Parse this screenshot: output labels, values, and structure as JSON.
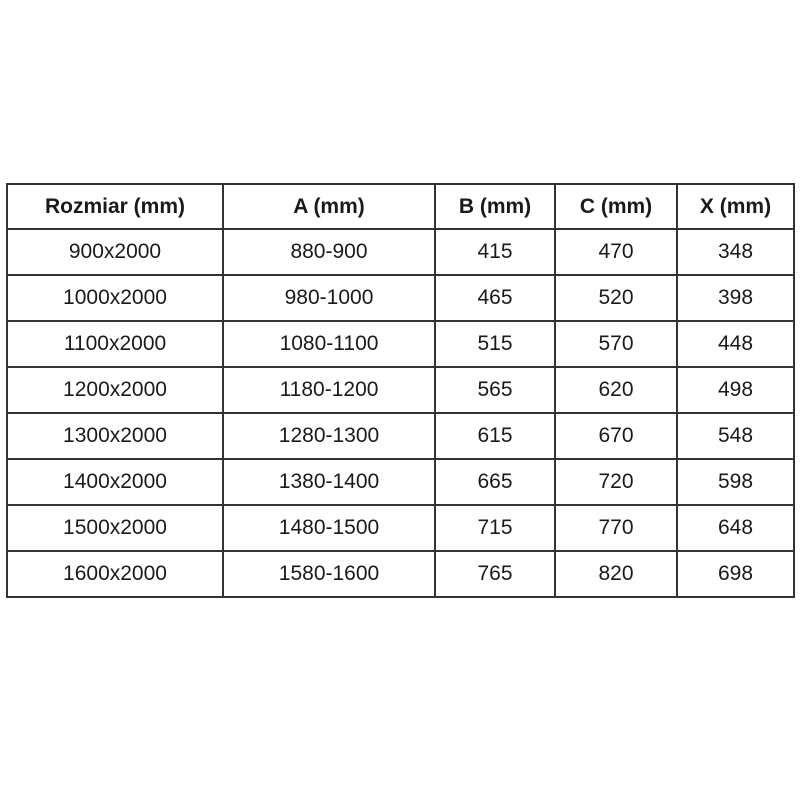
{
  "page": {
    "background_color": "#ffffff"
  },
  "table": {
    "name": "size-specification-table",
    "border_color": "#333333",
    "text_color": "#1a1a1a",
    "headers": [
      "Rozmiar (mm)",
      "A (mm)",
      "B (mm)",
      "C (mm)",
      "X (mm)"
    ],
    "rows": [
      [
        "900x2000",
        "880-900",
        "415",
        "470",
        "348"
      ],
      [
        "1000x2000",
        "980-1000",
        "465",
        "520",
        "398"
      ],
      [
        "1100x2000",
        "1080-1100",
        "515",
        "570",
        "448"
      ],
      [
        "1200x2000",
        "1180-1200",
        "565",
        "620",
        "498"
      ],
      [
        "1300x2000",
        "1280-1300",
        "615",
        "670",
        "548"
      ],
      [
        "1400x2000",
        "1380-1400",
        "665",
        "720",
        "598"
      ],
      [
        "1500x2000",
        "1480-1500",
        "715",
        "770",
        "648"
      ],
      [
        "1600x2000",
        "1580-1600",
        "765",
        "820",
        "698"
      ]
    ]
  }
}
